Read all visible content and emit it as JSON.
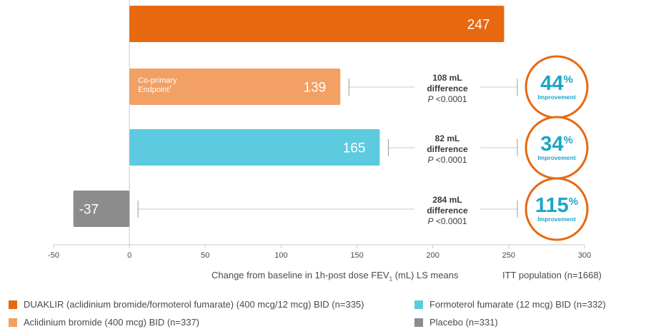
{
  "chart_data": {
    "type": "bar",
    "orientation": "horizontal",
    "xlim": [
      -50,
      300
    ],
    "xticks": [
      "-50",
      "0",
      "50",
      "100",
      "150",
      "200",
      "250",
      "300"
    ],
    "xlabel_prefix": "Change from baseline in 1h-post dose FEV",
    "xlabel_sub": "1",
    "xlabel_suffix": " (mL) LS means",
    "population_label": "ITT population (n=1668)",
    "bars": [
      {
        "series": "DUAKLIR (aclidinium bromide/formoterol fumarate) (400 mcg/12 mcg) BID (n=335)",
        "value": 247,
        "label": "247",
        "color": "#e8680f"
      },
      {
        "series": "Aclidinium bromide (400 mcg) BID (n=337)",
        "value": 139,
        "label": "139",
        "color": "#f2a064",
        "inner_note_line1": "Co-primary",
        "inner_note_line2": "Endpoint",
        "difference": {
          "line1": "108 mL",
          "line2": "difference",
          "p_italic": "P",
          "p_rest": " <0.0001"
        },
        "improvement": {
          "number": "44",
          "percent": "%",
          "word": "Improvement"
        }
      },
      {
        "series": "Formoterol fumarate (12 mcg) BID (n=332)",
        "value": 165,
        "label": "165",
        "color": "#5ccbdf",
        "difference": {
          "line1": "82 mL",
          "line2": "difference",
          "p_italic": "P",
          "p_rest": " <0.0001"
        },
        "improvement": {
          "number": "34",
          "percent": "%",
          "word": "Improvement"
        }
      },
      {
        "series": "Placebo (n=331)",
        "value": -37,
        "label": "-37",
        "color": "#8c8c8c",
        "difference": {
          "line1": "284 mL",
          "line2": "difference",
          "p_italic": "P",
          "p_rest": " <0.0001"
        },
        "improvement": {
          "number": "115",
          "percent": "%",
          "word": "Improvement"
        }
      }
    ],
    "footnote_mark": "†"
  },
  "legend": [
    {
      "label": "DUAKLIR (aclidinium bromide/formoterol fumarate) (400 mcg/12 mcg) BID (n=335)",
      "color": "#e8680f"
    },
    {
      "label": "Aclidinium bromide (400 mcg) BID (n=337)",
      "color": "#f2a064"
    },
    {
      "label": "Formoterol fumarate (12 mcg) BID (n=332)",
      "color": "#5ccbdf"
    },
    {
      "label": "Placebo (n=331)",
      "color": "#8c8c8c"
    }
  ],
  "colors": {
    "circle": "#e8680f",
    "accent_text": "#1aa6c7",
    "axis": "#c8c8c8"
  }
}
